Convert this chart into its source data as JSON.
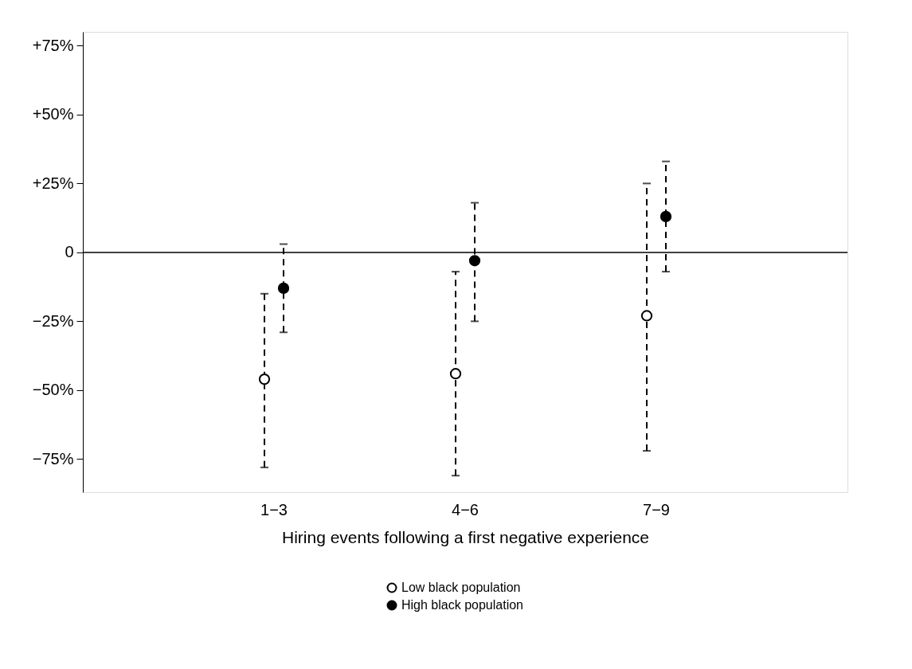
{
  "chart_data": {
    "type": "scatter",
    "xlabel": "Hiring events following a first negative experience",
    "categories": [
      "1−3",
      "4−6",
      "7−9"
    ],
    "series": [
      {
        "name": "Low black population",
        "color": "#000000",
        "values": [
          -46,
          -44,
          -23
        ],
        "errors": [
          [
            -78,
            -15
          ],
          [
            -81,
            -7
          ],
          [
            -72,
            25
          ]
        ]
      },
      {
        "name": "High black population",
        "color": "#000000",
        "values": [
          -13,
          -3,
          13
        ],
        "errors": [
          [
            -29,
            3
          ],
          [
            -25,
            18
          ],
          [
            -7,
            33
          ]
        ]
      }
    ],
    "ylim": [
      -87,
      80
    ],
    "yticks": [
      {
        "value": -75,
        "label": "−75%"
      },
      {
        "value": -50,
        "label": "−50%"
      },
      {
        "value": -25,
        "label": "−25%"
      },
      0,
      {
        "value": 25,
        "label": "+25%"
      },
      {
        "value": 50,
        "label": "+50%"
      },
      {
        "value": 75,
        "label": "+75%"
      }
    ],
    "ref_lines": [
      {
        "axis": "y",
        "value": 0
      }
    ],
    "marker": "circle",
    "line_style": "dashed",
    "grid": false,
    "legend": "bottom"
  }
}
